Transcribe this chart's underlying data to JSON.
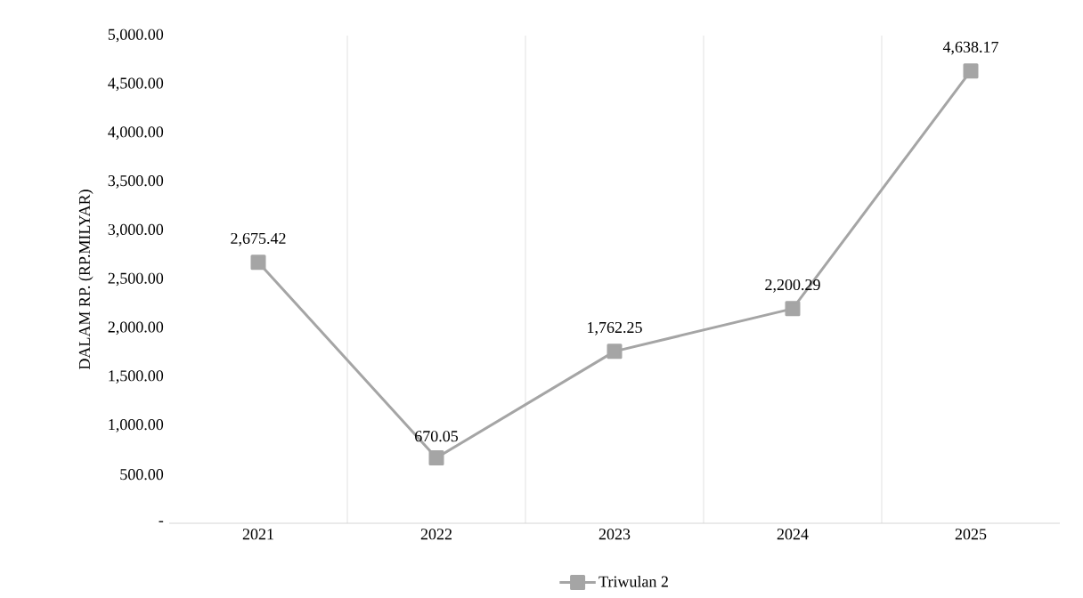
{
  "chart_data": {
    "type": "line",
    "ylabel": "DALAM RP. (RP.MILYAR)",
    "categories": [
      "2021",
      "2022",
      "2023",
      "2024",
      "2025"
    ],
    "series": [
      {
        "name": "Triwulan 2",
        "color": "#a5a5a5",
        "values": [
          2675.42,
          670.05,
          1762.25,
          2200.29,
          4638.17
        ],
        "value_labels": [
          "2,675.42",
          "670.05",
          "1,762.25",
          "2,200.29",
          "4,638.17"
        ]
      }
    ],
    "ylim": [
      0,
      5000
    ],
    "yticks": [
      {
        "value": 0,
        "label": "-"
      },
      {
        "value": 500,
        "label": "500.00"
      },
      {
        "value": 1000,
        "label": "1,000.00"
      },
      {
        "value": 1500,
        "label": "1,500.00"
      },
      {
        "value": 2000,
        "label": "2,000.00"
      },
      {
        "value": 2500,
        "label": "2,500.00"
      },
      {
        "value": 3000,
        "label": "3,000.00"
      },
      {
        "value": 3500,
        "label": "3,500.00"
      },
      {
        "value": 4000,
        "label": "4,000.00"
      },
      {
        "value": 4500,
        "label": "4,500.00"
      },
      {
        "value": 5000,
        "label": "5,000.00"
      }
    ],
    "grid": "x",
    "legend": "bottom",
    "marker": "square",
    "line_style": "solid"
  }
}
